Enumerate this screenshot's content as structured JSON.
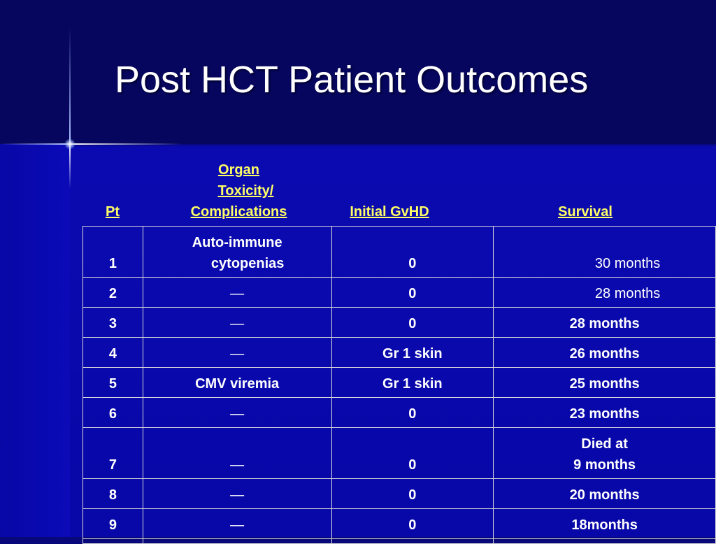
{
  "slide": {
    "title": "Post HCT Patient Outcomes"
  },
  "table": {
    "headers": {
      "pt": "Pt",
      "toxicity_line1": "Organ",
      "toxicity_line2": "Toxicity/",
      "toxicity_line3": "Complications",
      "gvhd": "Initial GvHD",
      "survival": "Survival"
    },
    "rows": [
      {
        "pt": "1",
        "tox_line1": "Auto-immune",
        "tox_line2": "cytopenias",
        "gvhd": "0",
        "survival": "30 months"
      },
      {
        "pt": "2",
        "tox": "—",
        "gvhd": "0",
        "survival": "28 months"
      },
      {
        "pt": "3",
        "tox": "—",
        "gvhd": "0",
        "survival": "28 months"
      },
      {
        "pt": "4",
        "tox": "—",
        "gvhd": "Gr 1 skin",
        "survival": "26 months"
      },
      {
        "pt": "5",
        "tox": "CMV viremia",
        "gvhd": "Gr 1 skin",
        "survival": "25 months"
      },
      {
        "pt": "6",
        "tox": "—",
        "gvhd": "0",
        "survival": "23 months"
      },
      {
        "pt": "7",
        "tox": "—",
        "gvhd": "0",
        "survival_line1": "Died at",
        "survival_line2": "9 months"
      },
      {
        "pt": "8",
        "tox": "—",
        "gvhd": "0",
        "survival": "20 months"
      },
      {
        "pt": "9",
        "tox": "—",
        "gvhd": "0",
        "survival": "18months"
      }
    ]
  },
  "colors": {
    "background": "#0808a8",
    "title_band": "#06065e",
    "header_text": "#ffff66",
    "body_text": "#ffffff",
    "grid": "#d8d8d8"
  }
}
